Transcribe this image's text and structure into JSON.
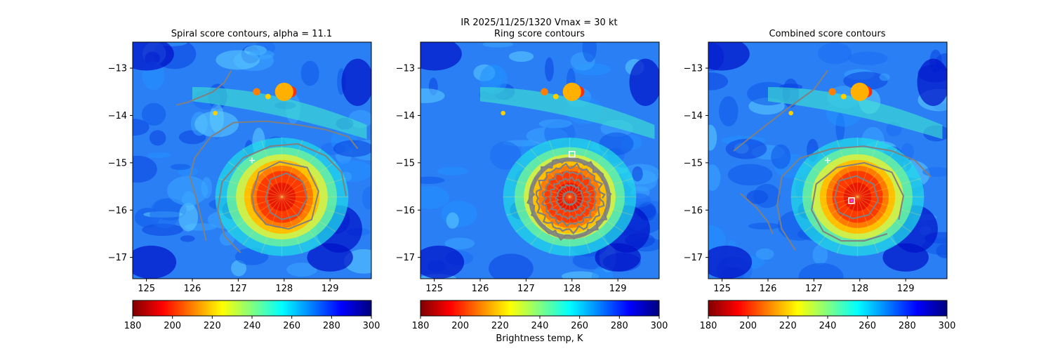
{
  "figure": {
    "suptitle_line1": "IR  2025/11/25/1320    Vmax = 30 kt",
    "colorbar_label": "Brightness temp, K"
  },
  "colors": {
    "jet": [
      "#800000",
      "#ff0000",
      "#ff8000",
      "#ffff00",
      "#80ff80",
      "#00ffff",
      "#0080ff",
      "#0000ff",
      "#000080"
    ],
    "contour": "#808080",
    "marker_white": "#ffffff",
    "marker_magenta": "#ff33ff"
  },
  "chart_data": [
    {
      "type": "heatmap",
      "title": "Spiral score contours, alpha = 11.1",
      "xlim": [
        124.7,
        129.9
      ],
      "ylim": [
        -17.45,
        -12.45
      ],
      "xticks": [
        125,
        126,
        127,
        128,
        129
      ],
      "yticks": [
        -13,
        -14,
        -15,
        -16,
        -17
      ],
      "colorbar": {
        "min": 180,
        "max": 300,
        "ticks": [
          180,
          200,
          220,
          240,
          260,
          280,
          300
        ]
      },
      "markers": [
        {
          "name": "first-guess-center",
          "symbol": "+",
          "x": 127.3,
          "y": -14.95
        }
      ],
      "contours": [
        [
          [
            125.65,
            -13.78
          ],
          [
            125.9,
            -13.72
          ],
          [
            126.2,
            -13.6
          ],
          [
            126.45,
            -13.5
          ],
          [
            126.7,
            -13.3
          ],
          [
            126.85,
            -13.05
          ]
        ],
        [
          [
            126.3,
            -16.65
          ],
          [
            126.2,
            -16.2
          ],
          [
            126.1,
            -15.8
          ],
          [
            125.95,
            -15.3
          ],
          [
            126.05,
            -14.9
          ],
          [
            126.4,
            -14.45
          ],
          [
            126.9,
            -14.15
          ],
          [
            127.6,
            -14.12
          ],
          [
            128.3,
            -14.2
          ],
          [
            128.9,
            -14.3
          ],
          [
            129.4,
            -14.45
          ],
          [
            129.6,
            -14.7
          ]
        ],
        [
          [
            127.05,
            -16.9
          ],
          [
            126.7,
            -16.55
          ],
          [
            126.55,
            -16.0
          ],
          [
            126.65,
            -15.4
          ],
          [
            127.1,
            -14.9
          ],
          [
            127.7,
            -14.65
          ],
          [
            128.3,
            -14.6
          ],
          [
            128.9,
            -14.85
          ],
          [
            129.25,
            -15.2
          ],
          [
            129.35,
            -15.7
          ]
        ],
        [
          [
            127.3,
            -15.7
          ],
          [
            127.45,
            -15.2
          ],
          [
            127.9,
            -14.98
          ],
          [
            128.5,
            -15.1
          ],
          [
            128.75,
            -15.6
          ],
          [
            128.6,
            -16.2
          ],
          [
            128.1,
            -16.4
          ],
          [
            127.6,
            -16.3
          ],
          [
            127.35,
            -16.0
          ],
          [
            127.3,
            -15.7
          ]
        ],
        [
          [
            127.6,
            -15.75
          ],
          [
            127.7,
            -15.35
          ],
          [
            128.05,
            -15.22
          ],
          [
            128.4,
            -15.4
          ],
          [
            128.5,
            -15.75
          ],
          [
            128.3,
            -16.1
          ],
          [
            127.95,
            -16.2
          ],
          [
            127.7,
            -16.05
          ],
          [
            127.6,
            -15.75
          ]
        ]
      ]
    },
    {
      "type": "heatmap",
      "title": "Ring score contours",
      "xlim": [
        124.7,
        129.9
      ],
      "ylim": [
        -17.45,
        -12.45
      ],
      "xticks": [
        125,
        126,
        127,
        128,
        129
      ],
      "yticks": [
        -13,
        -14,
        -15,
        -16,
        -17
      ],
      "colorbar": {
        "min": 180,
        "max": 300,
        "ticks": [
          180,
          200,
          220,
          240,
          260,
          280,
          300
        ]
      },
      "markers": [
        {
          "name": "ring-center-marker",
          "symbol": "square",
          "x": 128.0,
          "y": -14.82
        }
      ],
      "ring_region": {
        "cx": 127.95,
        "cy": -15.75,
        "rx": 0.85,
        "ry": 0.82,
        "rings": 6
      },
      "contours": []
    },
    {
      "type": "heatmap",
      "title": "Combined score contours",
      "xlim": [
        124.7,
        129.9
      ],
      "ylim": [
        -17.45,
        -12.45
      ],
      "xticks": [
        125,
        126,
        127,
        128,
        129
      ],
      "yticks": [
        -13,
        -14,
        -15,
        -16,
        -17
      ],
      "colorbar": {
        "min": 180,
        "max": 300,
        "ticks": [
          180,
          200,
          220,
          240,
          260,
          280,
          300
        ]
      },
      "markers": [
        {
          "name": "first-guess-center",
          "symbol": "+",
          "x": 127.3,
          "y": -14.95
        },
        {
          "name": "combined-center-marker",
          "symbol": "square",
          "x": 127.82,
          "y": -15.8
        },
        {
          "name": "combined-center-dot",
          "symbol": "dot",
          "x": 127.82,
          "y": -15.8
        }
      ],
      "contours": [
        [
          [
            125.25,
            -14.75
          ],
          [
            125.7,
            -14.4
          ],
          [
            126.1,
            -14.1
          ],
          [
            126.5,
            -13.8
          ],
          [
            127.0,
            -13.45
          ],
          [
            127.3,
            -13.05
          ]
        ],
        [
          [
            125.4,
            -15.65
          ],
          [
            125.75,
            -15.95
          ],
          [
            126.0,
            -16.25
          ],
          [
            126.1,
            -16.5
          ]
        ],
        [
          [
            126.6,
            -16.85
          ],
          [
            126.3,
            -16.4
          ],
          [
            126.2,
            -15.9
          ],
          [
            126.3,
            -15.3
          ],
          [
            126.7,
            -14.9
          ],
          [
            127.4,
            -14.7
          ],
          [
            128.1,
            -14.65
          ],
          [
            128.7,
            -14.75
          ],
          [
            129.2,
            -14.95
          ],
          [
            129.55,
            -15.3
          ]
        ],
        [
          [
            128.6,
            -16.5
          ],
          [
            128.1,
            -16.65
          ],
          [
            127.6,
            -16.65
          ],
          [
            127.2,
            -16.45
          ],
          [
            126.95,
            -16.0
          ],
          [
            127.05,
            -15.45
          ],
          [
            127.5,
            -15.1
          ],
          [
            128.1,
            -15.0
          ],
          [
            128.7,
            -15.2
          ],
          [
            128.95,
            -15.7
          ],
          [
            128.85,
            -16.2
          ]
        ],
        [
          [
            127.45,
            -15.75
          ],
          [
            127.55,
            -15.38
          ],
          [
            127.92,
            -15.28
          ],
          [
            128.3,
            -15.45
          ],
          [
            128.4,
            -15.8
          ],
          [
            128.2,
            -16.1
          ],
          [
            127.85,
            -16.18
          ],
          [
            127.55,
            -16.05
          ],
          [
            127.45,
            -15.75
          ]
        ]
      ]
    }
  ]
}
